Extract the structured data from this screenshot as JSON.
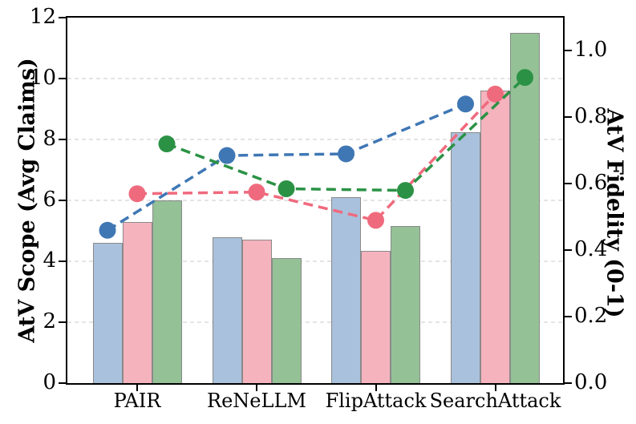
{
  "chart_data": {
    "type": "bar+line-dual-axis",
    "title": "",
    "categories": [
      "PAIR",
      "ReNeLLM",
      "FlipAttack",
      "SearchAttack"
    ],
    "left_axis": {
      "label": "AtV Scope (Avg Claims)",
      "tick_labels": [
        "0",
        "2",
        "4",
        "6",
        "8",
        "10",
        "12"
      ],
      "tick_values": [
        0,
        2,
        4,
        6,
        8,
        10,
        12
      ],
      "range": [
        0,
        12
      ],
      "grid": true
    },
    "right_axis": {
      "label": "AtV Fidelity (0-1)",
      "tick_labels": [
        "0.0",
        "0.2",
        "0.4",
        "0.6",
        "0.8",
        "1.0"
      ],
      "tick_values": [
        0,
        0.2,
        0.4,
        0.6,
        0.8,
        1.0
      ],
      "range": [
        0,
        1.1
      ],
      "grid": false
    },
    "legend": "none",
    "series": [
      {
        "id": "blue",
        "bar_color": "#a9c1dc",
        "line_color": "#3f77b4",
        "scope_bars": [
          4.6,
          4.8,
          6.1,
          8.25
        ],
        "fidelity_line": [
          0.46,
          0.685,
          0.69,
          0.84
        ]
      },
      {
        "id": "pink",
        "bar_color": "#f5b3be",
        "line_color": "#f06a7e",
        "scope_bars": [
          5.3,
          4.7,
          4.35,
          9.6
        ],
        "fidelity_line": [
          0.57,
          0.575,
          0.49,
          0.87
        ]
      },
      {
        "id": "green",
        "bar_color": "#94c196",
        "line_color": "#2b9245",
        "scope_bars": [
          6.0,
          4.1,
          5.15,
          11.5
        ],
        "fidelity_line": [
          0.72,
          0.585,
          0.58,
          0.92
        ]
      }
    ],
    "styles": {
      "background": "#ffffff",
      "grid_color": "#e4e4e4",
      "bar_edge_color": "#8a8a8a",
      "spine_color": "#000000",
      "line_dash": "12 7",
      "dot_radius": 10.5
    }
  }
}
